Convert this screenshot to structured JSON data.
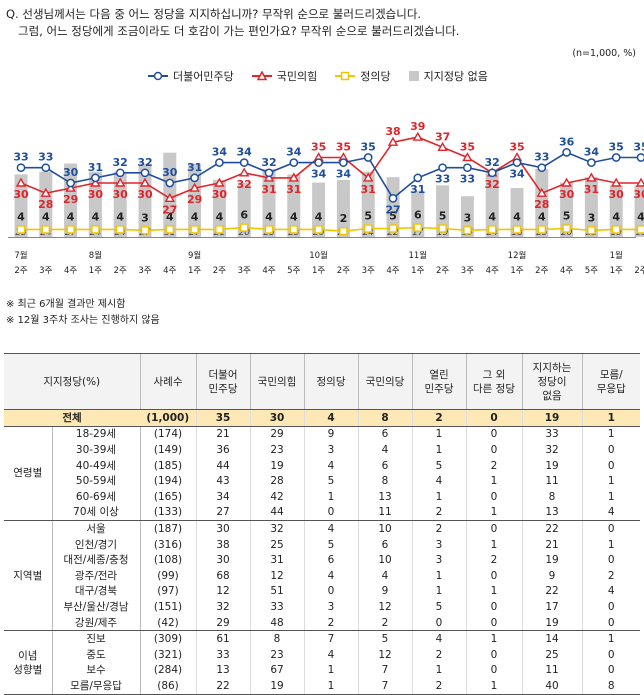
{
  "question": {
    "line1": "Q. 선생님께서는 다음 중 어느 정당을 지지하십니까? 무작위 순으로 불러드리겠습니다.",
    "line2": "그럼, 어느 정당에게 조금이라도 더 호감이 가는 편인가요? 무작위 순으로 불러드리겠습니다."
  },
  "unit": "(n=1,000, %)",
  "notes": [
    "※ 최근 6개월 결과만 제시함",
    "※ 12월 3주차 조사는 진행하지 않음"
  ],
  "chart_data": {
    "type": "line",
    "categories": [
      "7월 2주",
      "3주",
      "4주",
      "8월 1주",
      "2주",
      "3주",
      "4주",
      "9월 1주",
      "2주",
      "3주",
      "4주",
      "5주",
      "10월 1주",
      "2주",
      "3주",
      "4주",
      "11월 1주",
      "2주",
      "3주",
      "4주",
      "12월 1주",
      "2주",
      "4주",
      "5주",
      "1월 1주",
      "2주"
    ],
    "x_top": [
      "7월",
      "",
      "",
      "8월",
      "",
      "",
      "",
      "9월",
      "",
      "",
      "",
      "",
      "10월",
      "",
      "",
      "",
      "11월",
      "",
      "",
      "",
      "12월",
      "",
      "",
      "",
      "1월",
      ""
    ],
    "x_bottom": [
      "2주",
      "3주",
      "4주",
      "1주",
      "2주",
      "3주",
      "4주",
      "1주",
      "2주",
      "3주",
      "4주",
      "5주",
      "1주",
      "2주",
      "3주",
      "4주",
      "1주",
      "2주",
      "3주",
      "4주",
      "1주",
      "2주",
      "4주",
      "5주",
      "1주",
      "2주"
    ],
    "series": [
      {
        "name": "더불어민주당",
        "color": "#1f4e9c",
        "values": [
          33,
          33,
          30,
          31,
          32,
          32,
          30,
          31,
          34,
          34,
          32,
          34,
          34,
          34,
          35,
          27,
          31,
          33,
          33,
          32,
          34,
          33,
          36,
          34,
          35,
          35
        ]
      },
      {
        "name": "국민의힘",
        "color": "#e0242a",
        "values": [
          30,
          28,
          29,
          30,
          30,
          30,
          27,
          29,
          30,
          32,
          31,
          31,
          35,
          35,
          31,
          38,
          39,
          37,
          35,
          32,
          35,
          28,
          30,
          31,
          30,
          30
        ]
      },
      {
        "name": "정의당",
        "color": "#f2c500",
        "values": [
          4,
          4,
          4,
          4,
          4,
          3,
          4,
          4,
          4,
          6,
          4,
          4,
          4,
          2,
          5,
          5,
          6,
          5,
          3,
          4,
          4,
          4,
          5,
          3,
          4,
          4
        ]
      },
      {
        "name": "지지정당 없음",
        "color": "#c8c8c8",
        "values": [
          23,
          24,
          27,
          24,
          24,
          27,
          31,
          27,
          21,
          20,
          25,
          23,
          20,
          21,
          24,
          22,
          17,
          19,
          15,
          24,
          18,
          25,
          20,
          22,
          19,
          19
        ]
      }
    ],
    "ylim": [
      0,
      45
    ]
  },
  "table": {
    "headers": [
      "지지정당(%)",
      "사례수",
      "더불어\n민주당",
      "국민의힘",
      "정의당",
      "국민의당",
      "열린\n민주당",
      "그 외\n다른 정당",
      "지지하는\n정당이\n없음",
      "모름/\n무응답"
    ],
    "total": {
      "label": "전체",
      "n": "(1,000)",
      "values": [
        "35",
        "30",
        "4",
        "8",
        "2",
        "0",
        "19",
        "1"
      ]
    },
    "groups": [
      {
        "name": "연령별",
        "rows": [
          {
            "label": "18-29세",
            "n": "(174)",
            "values": [
              "21",
              "29",
              "9",
              "6",
              "1",
              "0",
              "33",
              "1"
            ]
          },
          {
            "label": "30-39세",
            "n": "(149)",
            "values": [
              "36",
              "23",
              "3",
              "4",
              "1",
              "0",
              "32",
              "0"
            ]
          },
          {
            "label": "40-49세",
            "n": "(185)",
            "values": [
              "44",
              "19",
              "4",
              "6",
              "5",
              "2",
              "19",
              "0"
            ]
          },
          {
            "label": "50-59세",
            "n": "(194)",
            "values": [
              "43",
              "28",
              "5",
              "8",
              "4",
              "1",
              "11",
              "1"
            ]
          },
          {
            "label": "60-69세",
            "n": "(165)",
            "values": [
              "34",
              "42",
              "1",
              "13",
              "1",
              "0",
              "8",
              "1"
            ]
          },
          {
            "label": "70세 이상",
            "n": "(133)",
            "values": [
              "27",
              "44",
              "0",
              "11",
              "2",
              "1",
              "13",
              "4"
            ]
          }
        ]
      },
      {
        "name": "지역별",
        "rows": [
          {
            "label": "서울",
            "n": "(187)",
            "values": [
              "30",
              "32",
              "4",
              "10",
              "2",
              "0",
              "22",
              "0"
            ]
          },
          {
            "label": "인천/경기",
            "n": "(316)",
            "values": [
              "38",
              "25",
              "5",
              "6",
              "3",
              "1",
              "21",
              "1"
            ]
          },
          {
            "label": "대전/세종/충청",
            "n": "(108)",
            "values": [
              "30",
              "31",
              "6",
              "10",
              "3",
              "2",
              "19",
              "0"
            ]
          },
          {
            "label": "광주/전라",
            "n": "(99)",
            "values": [
              "68",
              "12",
              "4",
              "4",
              "1",
              "0",
              "9",
              "2"
            ]
          },
          {
            "label": "대구/경북",
            "n": "(97)",
            "values": [
              "12",
              "51",
              "0",
              "9",
              "1",
              "1",
              "22",
              "4"
            ]
          },
          {
            "label": "부산/울산/경남",
            "n": "(151)",
            "values": [
              "32",
              "33",
              "3",
              "12",
              "5",
              "0",
              "17",
              "0"
            ]
          },
          {
            "label": "강원/제주",
            "n": "(42)",
            "values": [
              "29",
              "48",
              "2",
              "2",
              "0",
              "0",
              "19",
              "0"
            ]
          }
        ]
      },
      {
        "name": "이념\n성향별",
        "rows": [
          {
            "label": "진보",
            "n": "(309)",
            "values": [
              "61",
              "8",
              "7",
              "5",
              "4",
              "1",
              "14",
              "1"
            ]
          },
          {
            "label": "중도",
            "n": "(321)",
            "values": [
              "33",
              "23",
              "4",
              "12",
              "2",
              "0",
              "25",
              "0"
            ]
          },
          {
            "label": "보수",
            "n": "(284)",
            "values": [
              "13",
              "67",
              "1",
              "7",
              "1",
              "0",
              "11",
              "0"
            ]
          },
          {
            "label": "모름/무응답",
            "n": "(86)",
            "values": [
              "22",
              "19",
              "1",
              "7",
              "2",
              "1",
              "40",
              "8"
            ]
          }
        ]
      }
    ]
  }
}
